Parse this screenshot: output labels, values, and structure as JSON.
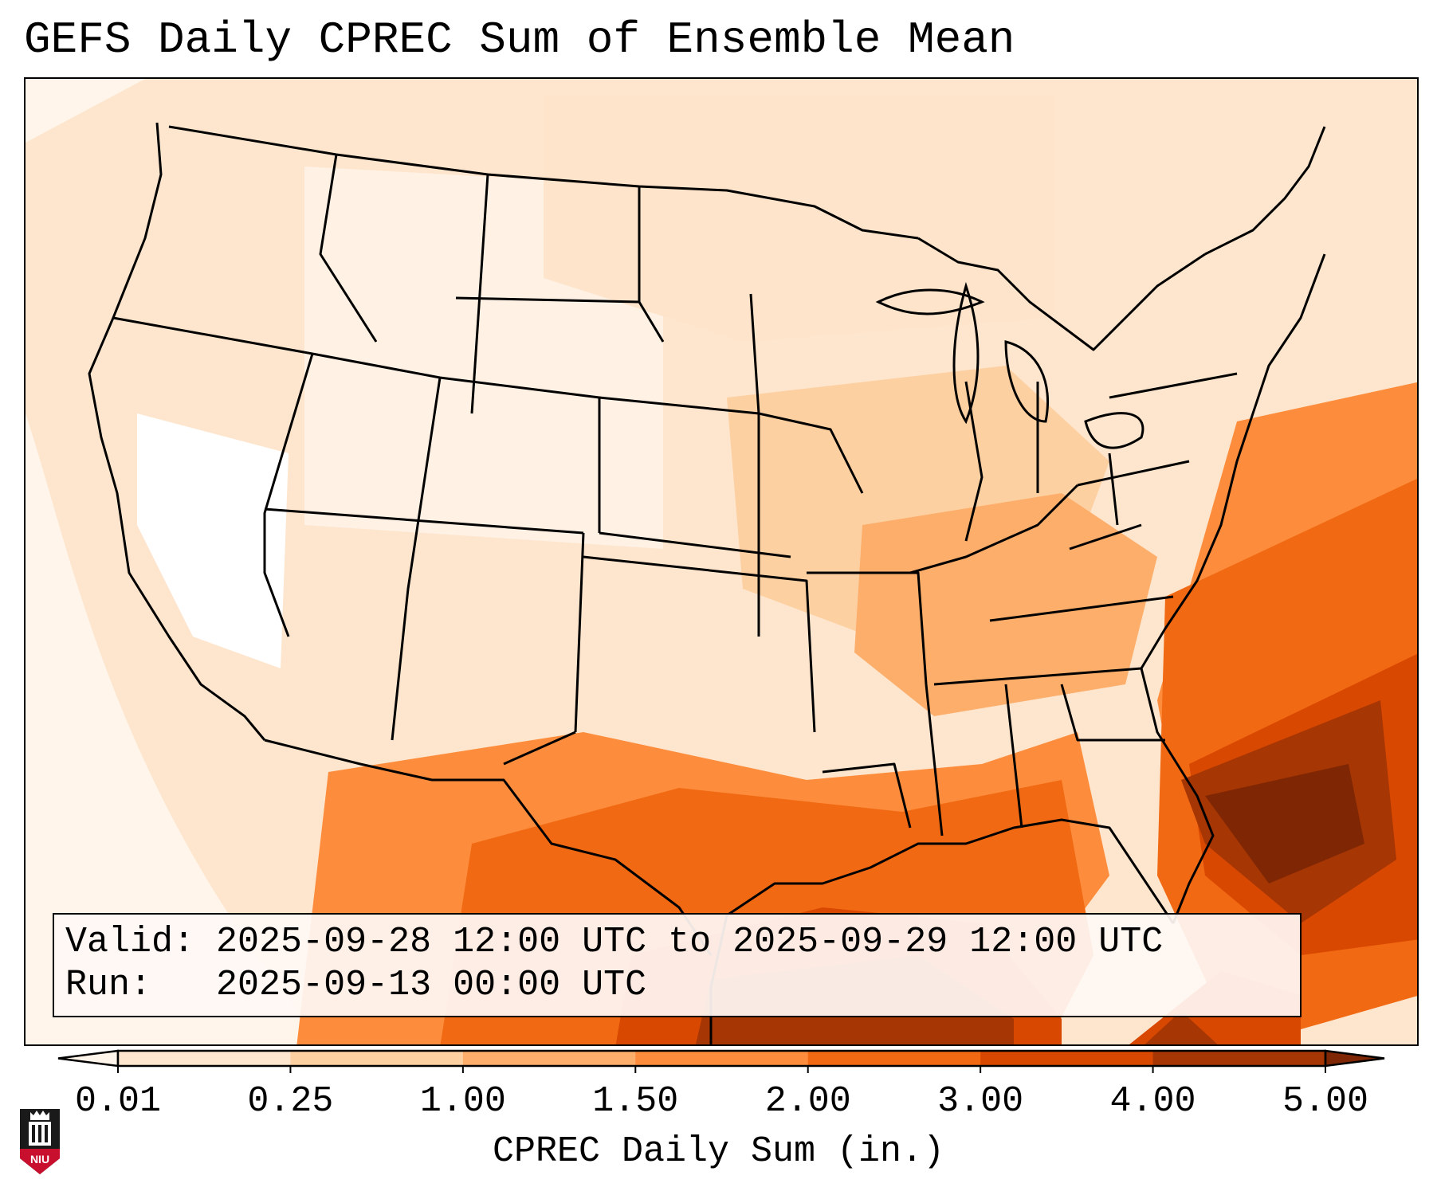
{
  "title": "GEFS Daily CPREC Sum of Ensemble Mean",
  "info": {
    "valid_label": "Valid:",
    "valid_value": "2025-09-28 12:00 UTC to 2025-09-29 12:00 UTC",
    "run_label": "Run:",
    "run_value": "2025-09-13 00:00 UTC"
  },
  "colorbar": {
    "label": "CPREC Daily Sum (in.)",
    "ticks": [
      "0.01",
      "0.25",
      "1.00",
      "1.50",
      "2.00",
      "3.00",
      "4.00",
      "5.00"
    ],
    "colors": [
      "#fff5eb",
      "#fee6ce",
      "#fdd0a2",
      "#fdae6b",
      "#fd8d3c",
      "#f16913",
      "#d94801",
      "#a63603",
      "#7f2704"
    ],
    "extend": "both"
  },
  "logo": {
    "text": "NIU"
  },
  "colors": {
    "ocean_blank": "#fff2e8",
    "border": "#000000"
  }
}
